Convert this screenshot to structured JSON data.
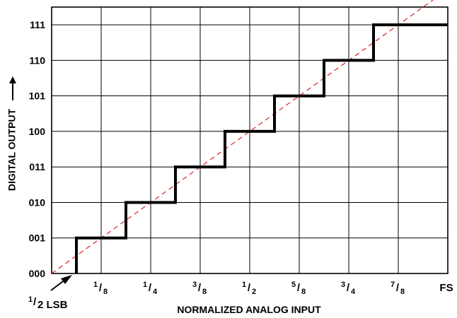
{
  "chart_data": {
    "type": "line",
    "xlabel": "NORMALIZED ANALOG INPUT",
    "ylabel": "DIGITAL OUTPUT",
    "xlim": [
      0,
      1
    ],
    "ylim": [
      0,
      7.5
    ],
    "grid": true,
    "x_ticks": [
      {
        "value": 0.125,
        "num": "1",
        "slash": "/",
        "den": "8"
      },
      {
        "value": 0.25,
        "num": "1",
        "slash": "/",
        "den": "4"
      },
      {
        "value": 0.375,
        "num": "3",
        "slash": "/",
        "den": "8"
      },
      {
        "value": 0.5,
        "num": "1",
        "slash": "/",
        "den": "2"
      },
      {
        "value": 0.625,
        "num": "5",
        "slash": "/",
        "den": "8"
      },
      {
        "value": 0.75,
        "num": "3",
        "slash": "/",
        "den": "4"
      },
      {
        "value": 0.875,
        "num": "7",
        "slash": "/",
        "den": "8"
      },
      {
        "value": 1.0,
        "label": "FS"
      }
    ],
    "y_ticks": [
      {
        "value": 0,
        "label": "000"
      },
      {
        "value": 1,
        "label": "001"
      },
      {
        "value": 2,
        "label": "010"
      },
      {
        "value": 3,
        "label": "011"
      },
      {
        "value": 4,
        "label": "100"
      },
      {
        "value": 5,
        "label": "101"
      },
      {
        "value": 6,
        "label": "110"
      },
      {
        "value": 7,
        "label": "111"
      }
    ],
    "series": [
      {
        "style": "solid",
        "color": "#000000",
        "x": [
          0.0625,
          0.0625,
          0.1875,
          0.1875,
          0.3125,
          0.3125,
          0.4375,
          0.4375,
          0.5625,
          0.5625,
          0.6875,
          0.6875,
          0.8125,
          0.8125,
          1.0
        ],
        "y": [
          0,
          1,
          1,
          2,
          2,
          3,
          3,
          4,
          4,
          5,
          5,
          6,
          6,
          7,
          7
        ]
      },
      {
        "style": "dashed",
        "color": "#e02020",
        "x": [
          0,
          1
        ],
        "y": [
          0,
          8
        ]
      }
    ],
    "annotations": [
      {
        "num": "1",
        "slash": "/",
        "text": "2 LSB",
        "x": 0.0625,
        "y": 0
      }
    ]
  }
}
